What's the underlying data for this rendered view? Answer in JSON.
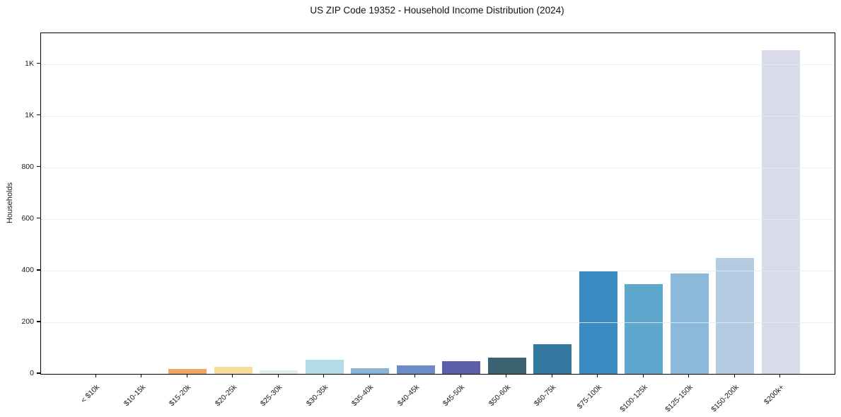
{
  "chart_data": {
    "type": "bar",
    "title": "US ZIP Code 19352 - Household Income Distribution (2024)",
    "xlabel": "",
    "ylabel": "Households",
    "categories": [
      "< $10k",
      "$10-15k",
      "$15-20k",
      "$20-25k",
      "$25-30k",
      "$30-35k",
      "$35-40k",
      "$40-45k",
      "$45-50k",
      "$50-60k",
      "$60-75k",
      "$75-100k",
      "$100-125k",
      "$125-150k",
      "$150-200k",
      "$200k+"
    ],
    "values": [
      0,
      0,
      18,
      28,
      15,
      56,
      21,
      34,
      50,
      63,
      116,
      398,
      347,
      390,
      449,
      1255
    ],
    "bar_colors": [
      "#e8823f",
      "#f29b56",
      "#f2a45f",
      "#f9dc98",
      "#e1eff1",
      "#b4dbea",
      "#8ab3d8",
      "#6b8cc7",
      "#5c5fa9",
      "#3c6272",
      "#33789f",
      "#3a8bc2",
      "#5ea7cd",
      "#8cb9d9",
      "#b5cbe2",
      "#d9dbe9"
    ],
    "ytick_labels": [
      "0",
      "200",
      "400",
      "600",
      "800",
      "1K",
      "1K"
    ],
    "ytick_values": [
      0,
      200,
      400,
      600,
      800,
      1000,
      1200
    ],
    "ylim": [
      0,
      1320
    ],
    "grid": "horizontal",
    "gridline_color": "#e9e9f2",
    "legend": "none",
    "xtick_rotation_deg": 45,
    "text_color": "#1a1a1a",
    "spine_color": "#000000",
    "background_color": "#ffffff"
  }
}
